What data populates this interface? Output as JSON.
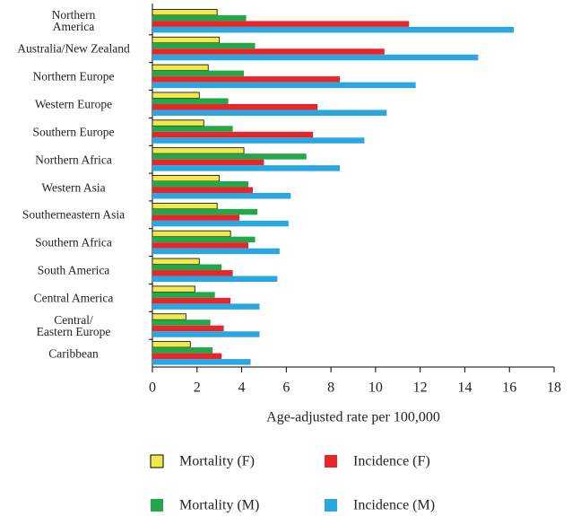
{
  "chart_data": {
    "type": "bar",
    "orientation": "horizontal",
    "x_label": "Age-adjusted rate per 100,000",
    "categories": [
      "Northern\nAmerica",
      "Australia/New Zealand",
      "Northern Europe",
      "Western Europe",
      "Southern Europe",
      "Northern Africa",
      "Western Asia",
      "Southerneastern Asia",
      "Southern Africa",
      "South America",
      "Central America",
      "Central/\nEastern Europe",
      "Caribbean"
    ],
    "series": [
      {
        "name": "Mortality (F)",
        "color": "#f2e84b",
        "values": [
          2.9,
          3.0,
          2.5,
          2.1,
          2.3,
          4.1,
          3.0,
          2.9,
          3.5,
          2.1,
          1.9,
          1.5,
          1.7
        ]
      },
      {
        "name": "Mortality (M)",
        "color": "#22a84a",
        "values": [
          4.2,
          4.6,
          4.1,
          3.4,
          3.6,
          6.9,
          4.3,
          4.7,
          4.6,
          3.1,
          2.8,
          2.6,
          2.7
        ]
      },
      {
        "name": "Incidence (F)",
        "color": "#e8262a",
        "values": [
          11.5,
          10.4,
          8.4,
          7.4,
          7.2,
          5.0,
          4.5,
          3.9,
          4.3,
          3.6,
          3.5,
          3.2,
          3.1
        ]
      },
      {
        "name": "Incidence (M)",
        "color": "#2aa7e0",
        "values": [
          16.2,
          14.6,
          11.8,
          10.5,
          9.5,
          8.4,
          6.2,
          6.1,
          5.7,
          5.6,
          4.8,
          4.8,
          4.4
        ]
      }
    ],
    "xlim": [
      0,
      18
    ],
    "xticks": [
      0,
      2,
      4,
      6,
      8,
      10,
      12,
      14,
      16,
      18
    ],
    "grid": false
  }
}
